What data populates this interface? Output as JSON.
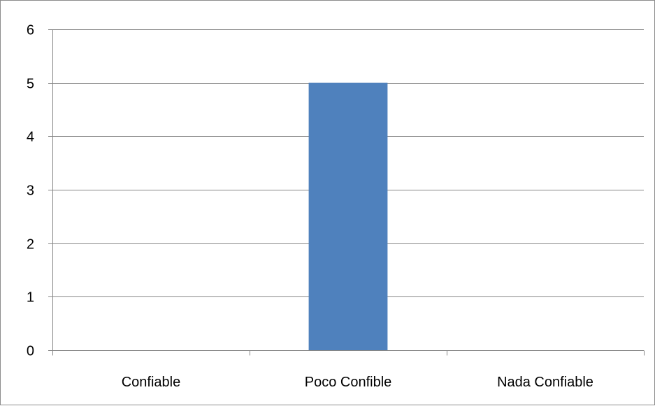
{
  "chart_data": {
    "type": "bar",
    "title": "",
    "xlabel": "",
    "ylabel": "",
    "categories": [
      "Confiable",
      "Poco Confible",
      "Nada Confiable"
    ],
    "values": [
      0,
      5,
      0
    ],
    "ylim": [
      0,
      6
    ],
    "yticks": [
      0,
      1,
      2,
      3,
      4,
      5,
      6
    ],
    "grid": true,
    "legend": "none",
    "bar_color": "#4F81BD",
    "axis_color": "#868686",
    "gridline_color": "#868686"
  }
}
